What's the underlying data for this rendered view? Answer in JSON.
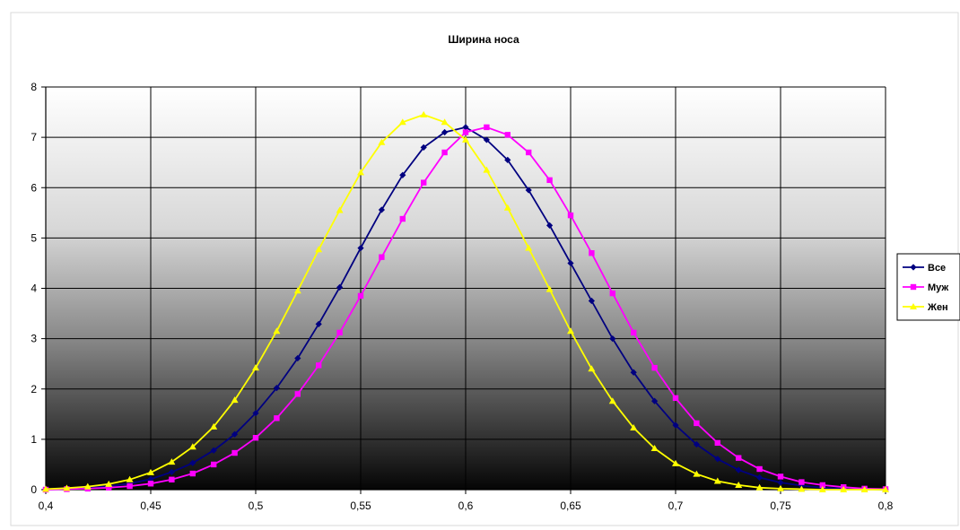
{
  "chart_data": {
    "type": "line",
    "title": "Ширина носа",
    "xlabel": "",
    "ylabel": "",
    "xlim": [
      0.4,
      0.8
    ],
    "ylim": [
      0,
      8
    ],
    "x_ticks": [
      "0,4",
      "0,45",
      "0,5",
      "0,55",
      "0,6",
      "0,65",
      "0,7",
      "0,75",
      "0,8"
    ],
    "x_tick_values": [
      0.4,
      0.45,
      0.5,
      0.55,
      0.6,
      0.65,
      0.7,
      0.75,
      0.8
    ],
    "y_ticks": [
      "0",
      "1",
      "2",
      "3",
      "4",
      "5",
      "6",
      "7",
      "8"
    ],
    "y_tick_values": [
      0,
      1,
      2,
      3,
      4,
      5,
      6,
      7,
      8
    ],
    "grid": true,
    "legend_position": "right",
    "series": [
      {
        "name": "Все",
        "color": "#000080",
        "marker": "diamond",
        "x": [
          0.4,
          0.41,
          0.42,
          0.43,
          0.44,
          0.45,
          0.46,
          0.47,
          0.48,
          0.49,
          0.5,
          0.51,
          0.52,
          0.53,
          0.54,
          0.55,
          0.56,
          0.57,
          0.58,
          0.59,
          0.6,
          0.61,
          0.62,
          0.63,
          0.64,
          0.65,
          0.66,
          0.67,
          0.68,
          0.69,
          0.7,
          0.71,
          0.72,
          0.73,
          0.74,
          0.75,
          0.76,
          0.77,
          0.78,
          0.79,
          0.8
        ],
        "y": [
          0.01,
          0.02,
          0.04,
          0.07,
          0.12,
          0.21,
          0.35,
          0.53,
          0.78,
          1.1,
          1.52,
          2.02,
          2.61,
          3.29,
          4.02,
          4.8,
          5.56,
          6.25,
          6.8,
          7.1,
          7.2,
          6.95,
          6.55,
          5.95,
          5.25,
          4.5,
          3.75,
          3.0,
          2.33,
          1.76,
          1.28,
          0.9,
          0.61,
          0.39,
          0.24,
          0.14,
          0.08,
          0.04,
          0.02,
          0.01,
          0.0
        ]
      },
      {
        "name": "Муж",
        "color": "#FF00FF",
        "marker": "square",
        "x": [
          0.4,
          0.41,
          0.42,
          0.43,
          0.44,
          0.45,
          0.46,
          0.47,
          0.48,
          0.49,
          0.5,
          0.51,
          0.52,
          0.53,
          0.54,
          0.55,
          0.56,
          0.57,
          0.58,
          0.59,
          0.6,
          0.61,
          0.62,
          0.63,
          0.64,
          0.65,
          0.66,
          0.67,
          0.68,
          0.69,
          0.7,
          0.71,
          0.72,
          0.73,
          0.74,
          0.75,
          0.76,
          0.77,
          0.78,
          0.79,
          0.8
        ],
        "y": [
          0.0,
          0.01,
          0.02,
          0.04,
          0.07,
          0.12,
          0.2,
          0.32,
          0.5,
          0.73,
          1.03,
          1.42,
          1.9,
          2.47,
          3.12,
          3.85,
          4.62,
          5.38,
          6.1,
          6.7,
          7.1,
          7.2,
          7.05,
          6.7,
          6.15,
          5.45,
          4.7,
          3.9,
          3.12,
          2.42,
          1.82,
          1.32,
          0.93,
          0.63,
          0.41,
          0.26,
          0.15,
          0.09,
          0.05,
          0.02,
          0.01
        ]
      },
      {
        "name": "Жен",
        "color": "#FFFF00",
        "marker": "triangle",
        "x": [
          0.4,
          0.41,
          0.42,
          0.43,
          0.44,
          0.45,
          0.46,
          0.47,
          0.48,
          0.49,
          0.5,
          0.51,
          0.52,
          0.53,
          0.54,
          0.55,
          0.56,
          0.57,
          0.58,
          0.59,
          0.6,
          0.61,
          0.62,
          0.63,
          0.64,
          0.65,
          0.66,
          0.67,
          0.68,
          0.69,
          0.7,
          0.71,
          0.72,
          0.73,
          0.74,
          0.75,
          0.76,
          0.77,
          0.78,
          0.79,
          0.8
        ],
        "y": [
          0.01,
          0.03,
          0.06,
          0.11,
          0.2,
          0.34,
          0.55,
          0.85,
          1.25,
          1.78,
          2.42,
          3.15,
          3.95,
          4.77,
          5.55,
          6.3,
          6.9,
          7.3,
          7.45,
          7.3,
          6.95,
          6.35,
          5.6,
          4.8,
          3.98,
          3.15,
          2.4,
          1.76,
          1.23,
          0.82,
          0.52,
          0.31,
          0.17,
          0.09,
          0.04,
          0.02,
          0.01,
          0.0,
          0.0,
          0.0,
          0.0
        ]
      }
    ]
  }
}
